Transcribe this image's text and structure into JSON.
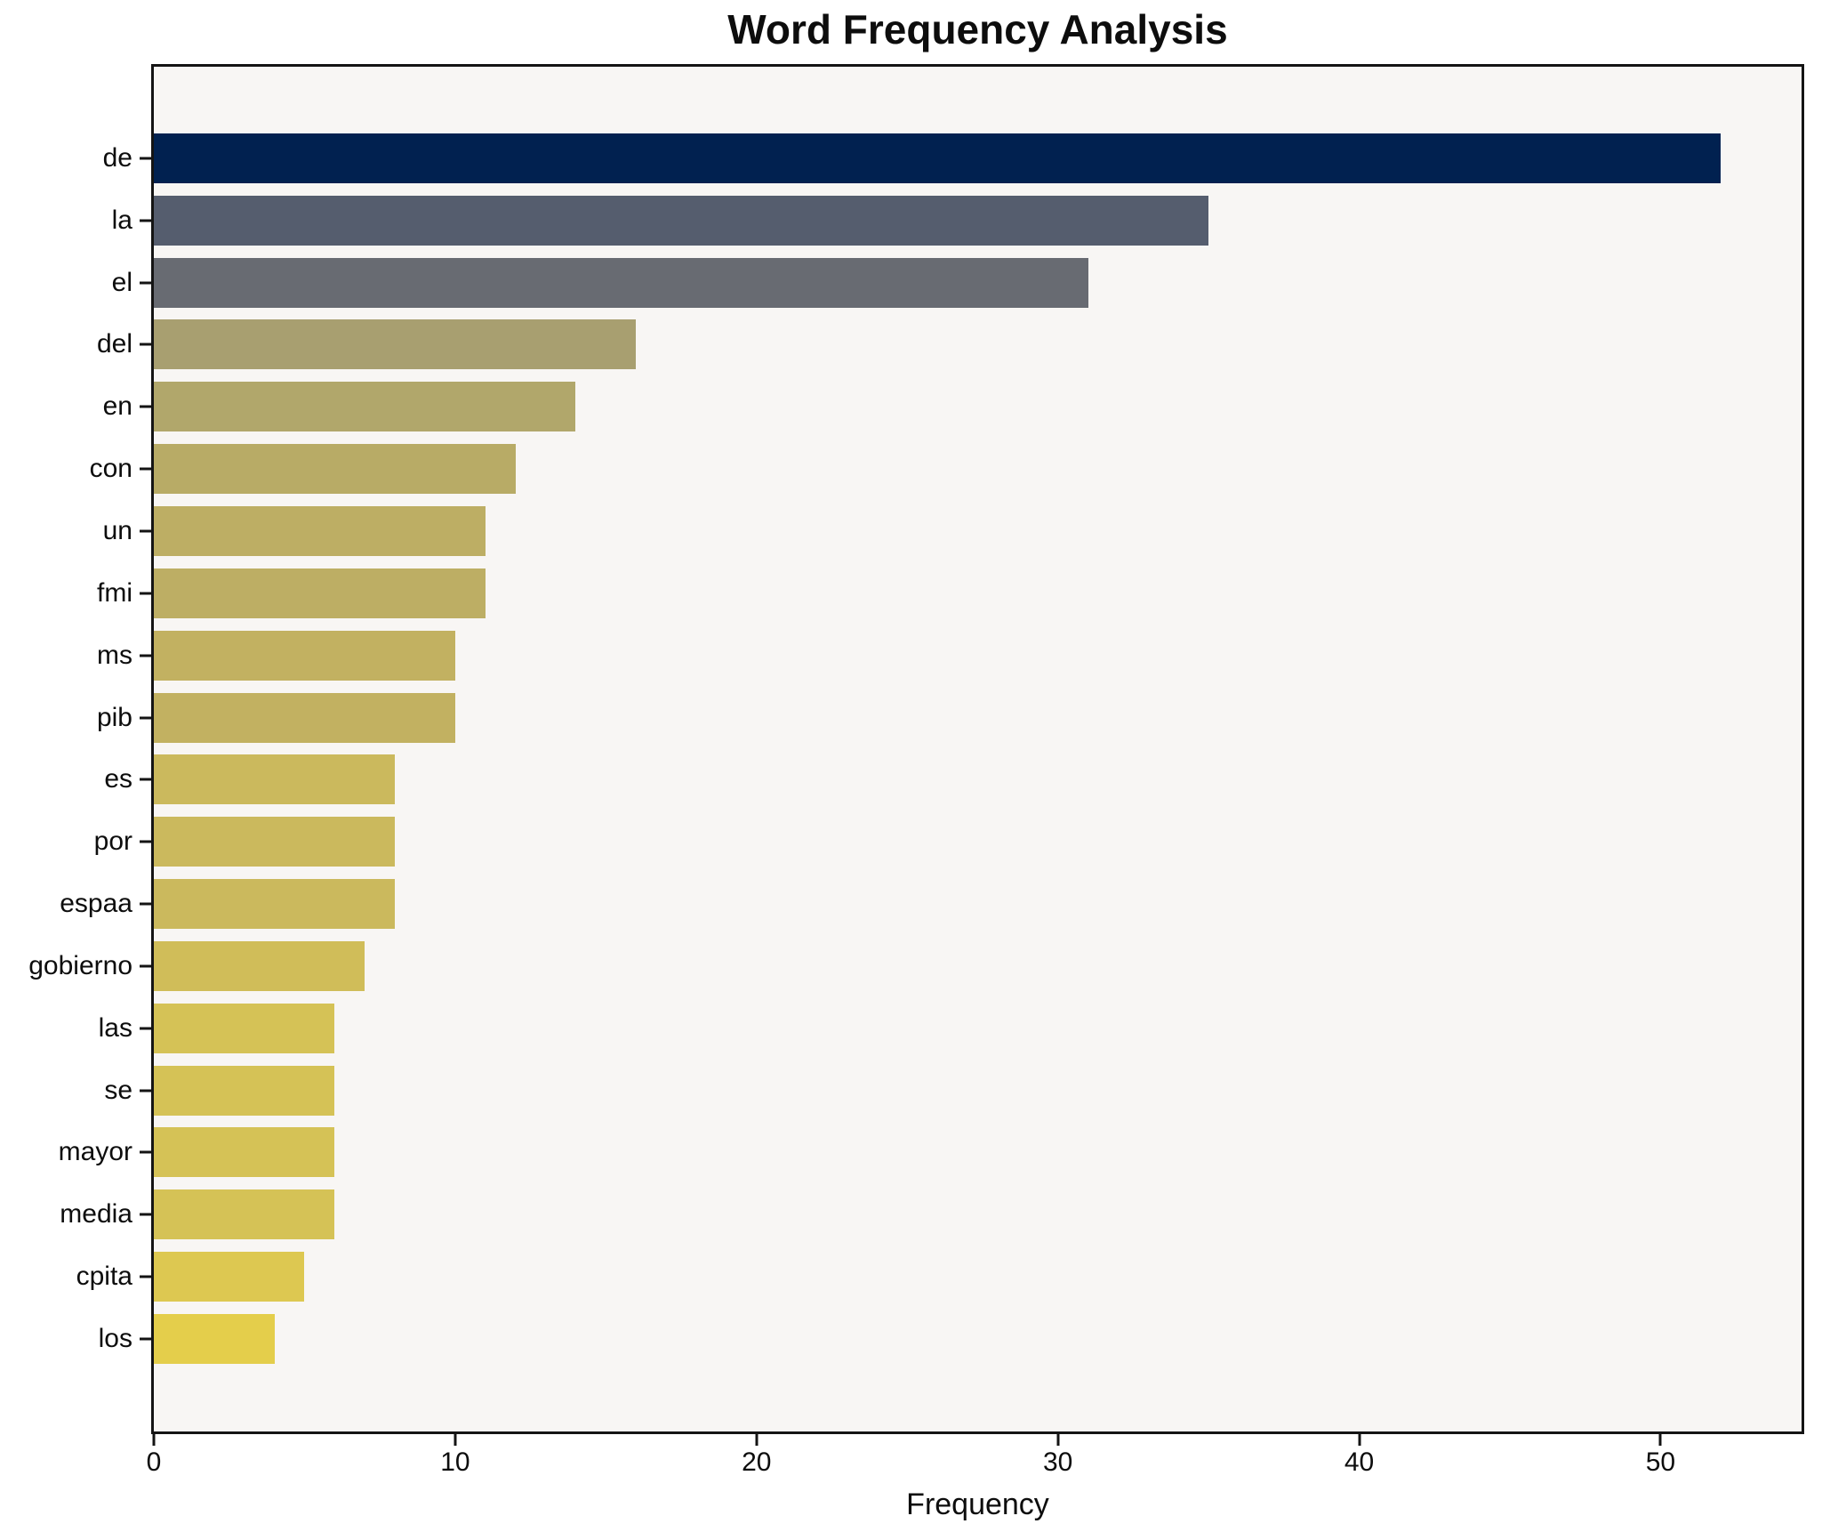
{
  "title": "Word Frequency Analysis",
  "chart_data": {
    "type": "bar",
    "orientation": "horizontal",
    "title": "Word Frequency Analysis",
    "xlabel": "Frequency",
    "ylabel": "",
    "categories": [
      "de",
      "la",
      "el",
      "del",
      "en",
      "con",
      "un",
      "fmi",
      "ms",
      "pib",
      "es",
      "por",
      "espaa",
      "gobierno",
      "las",
      "se",
      "mayor",
      "media",
      "cpita",
      "los"
    ],
    "values": [
      52,
      35,
      31,
      16,
      14,
      12,
      11,
      11,
      10,
      10,
      8,
      8,
      8,
      7,
      6,
      6,
      6,
      6,
      5,
      4
    ],
    "bar_colors": [
      "#012150",
      "#555d6e",
      "#686b72",
      "#a89f70",
      "#b1a76b",
      "#b8ab66",
      "#bdae64",
      "#bdae64",
      "#c2b161",
      "#c2b161",
      "#cbb95d",
      "#cbb95d",
      "#cbb95d",
      "#d0bd59",
      "#d5c256",
      "#d5c256",
      "#d5c256",
      "#d5c256",
      "#ddc851",
      "#e4ce4b"
    ],
    "xticks": [
      0,
      10,
      20,
      30,
      40,
      50
    ],
    "xlim": [
      0,
      54.68
    ],
    "grid": false,
    "legend_position": "none",
    "plot_background": "#f8f6f4",
    "figure_background": "#ffffff",
    "spine_color": "#141414"
  }
}
